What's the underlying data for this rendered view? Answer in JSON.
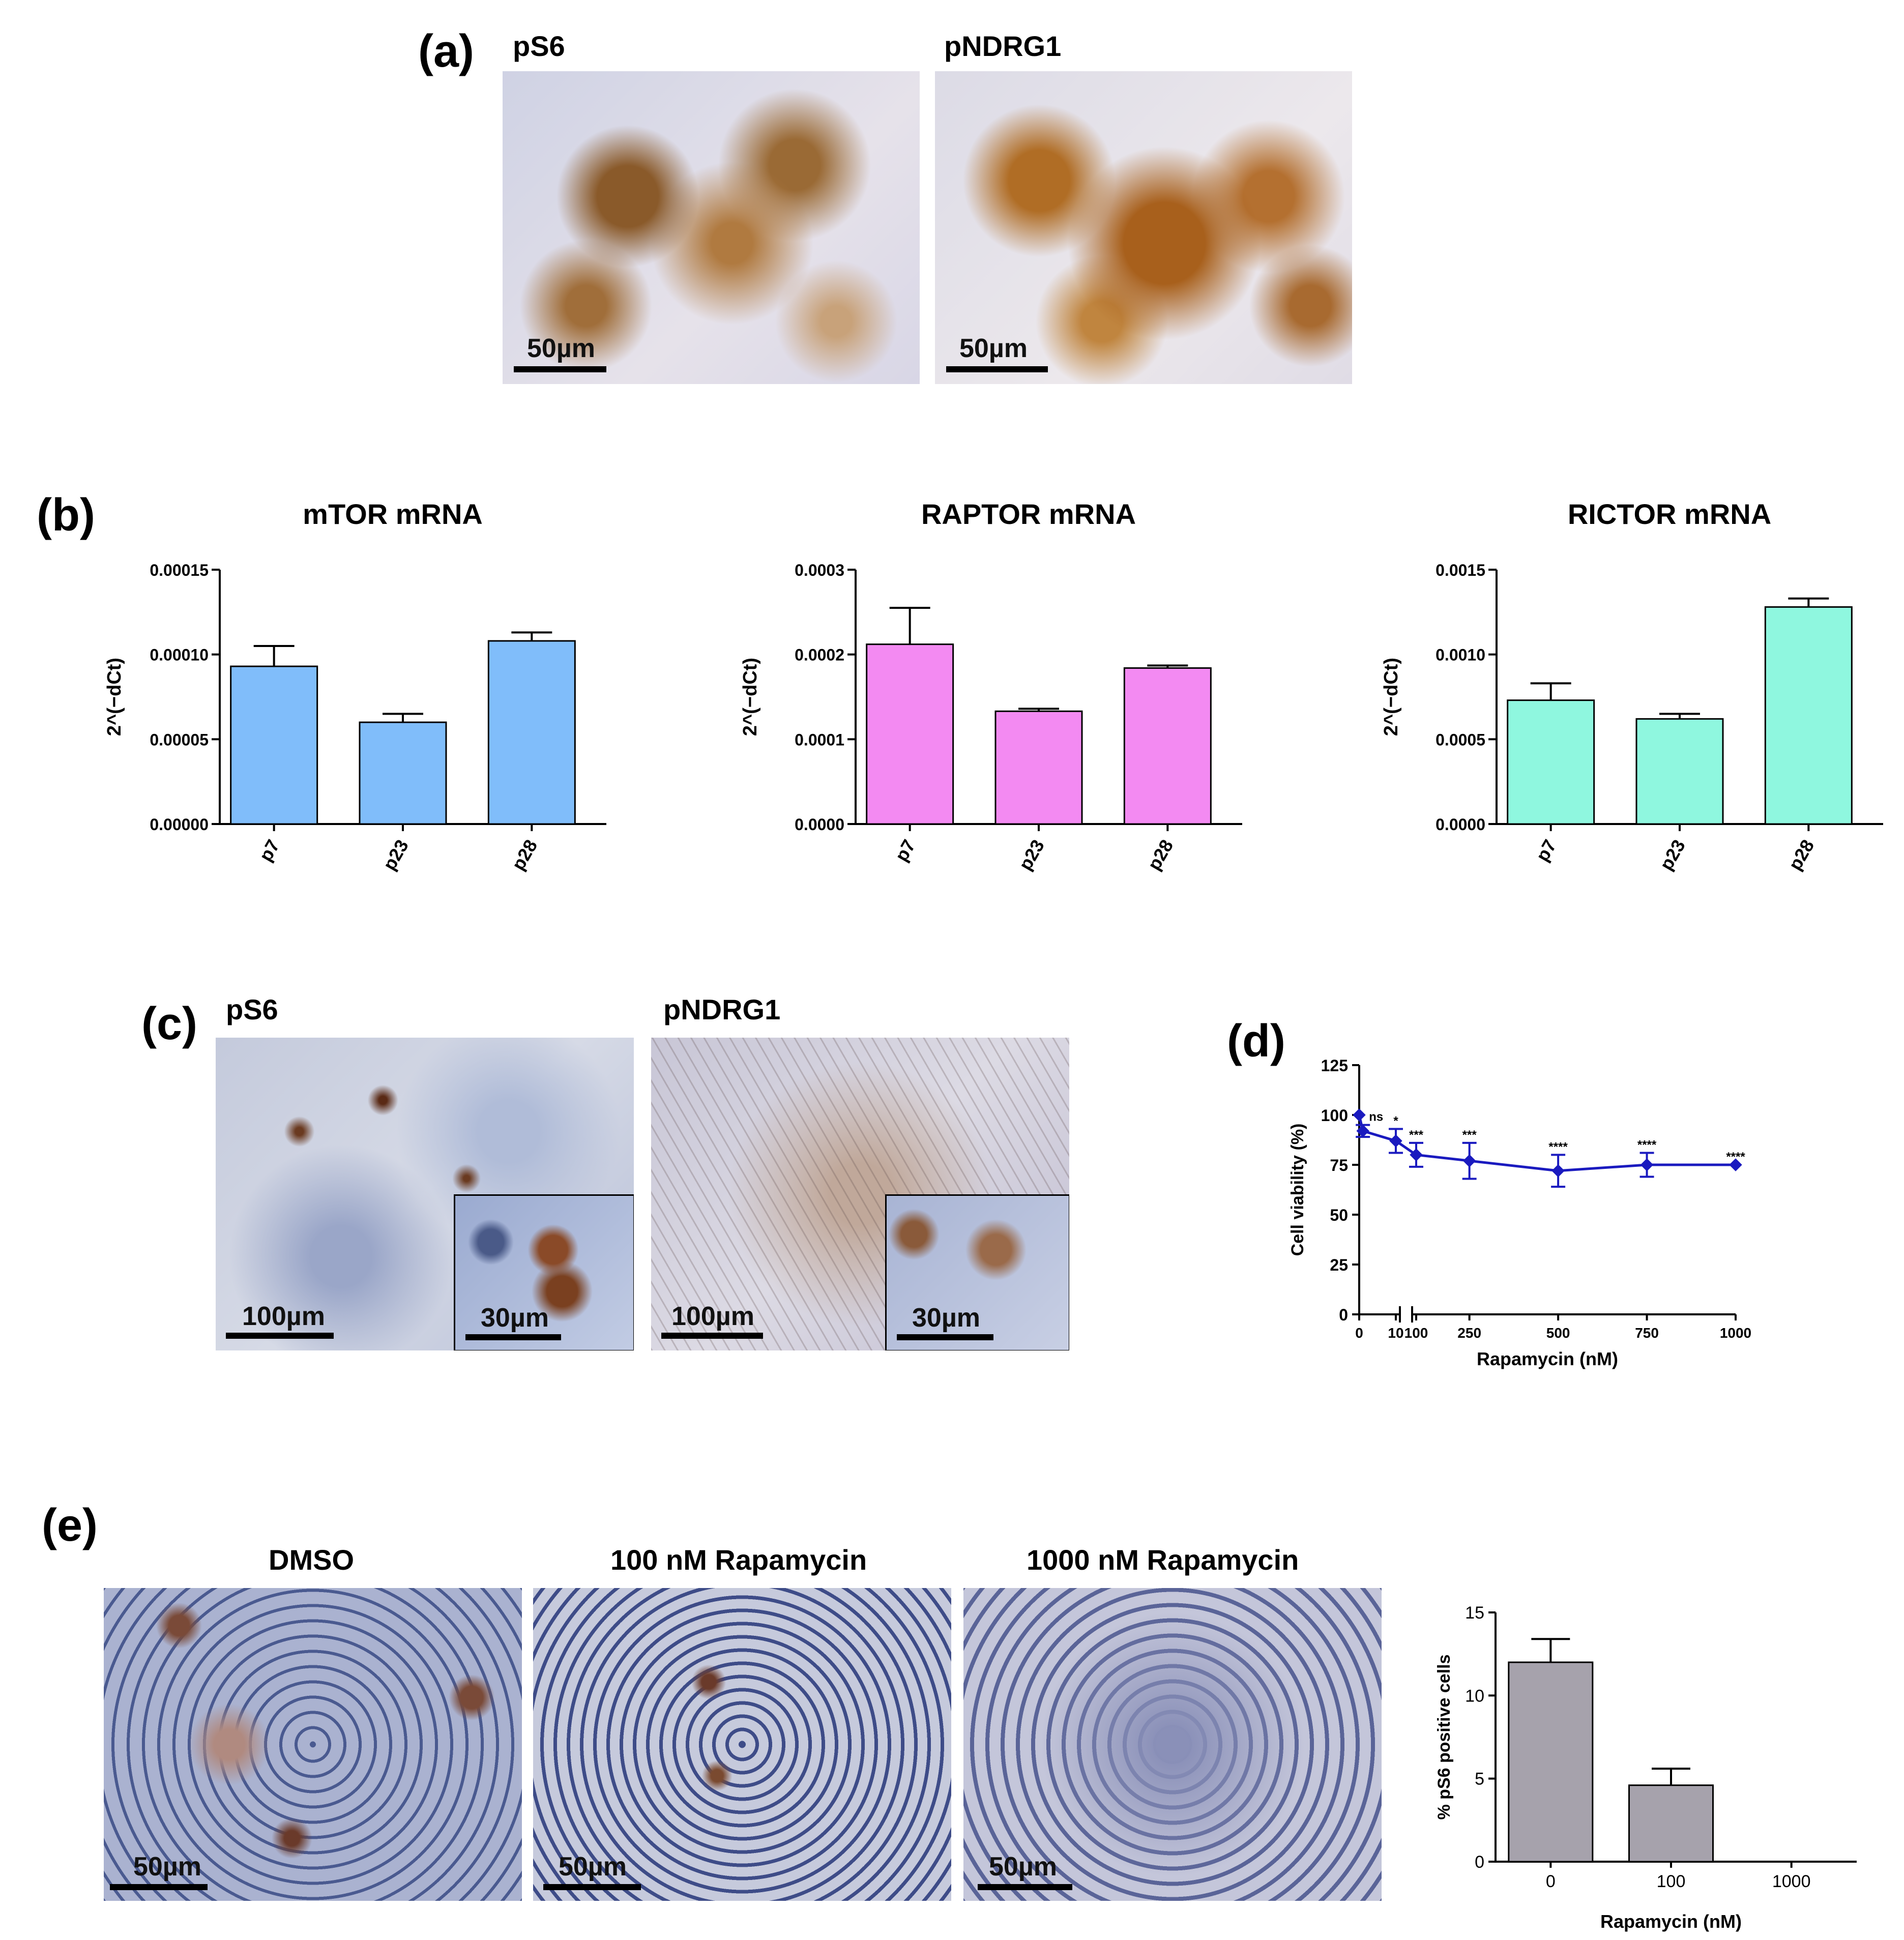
{
  "panels": {
    "a": {
      "letter": "(a)",
      "images": [
        {
          "title": "pS6",
          "scale": "50µm"
        },
        {
          "title": "pNDRG1",
          "scale": "50µm"
        }
      ]
    },
    "b": {
      "letter": "(b)"
    },
    "c": {
      "letter": "(c)",
      "images": [
        {
          "title": "pS6",
          "scale": "100µm",
          "inset_scale": "30µm"
        },
        {
          "title": "pNDRG1",
          "scale": "100µm",
          "inset_scale": "30µm"
        }
      ]
    },
    "d": {
      "letter": "(d)"
    },
    "e": {
      "letter": "(e)",
      "images": [
        {
          "title": "DMSO",
          "scale": "50µm"
        },
        {
          "title": "100 nM Rapamycin",
          "scale": "50µm"
        },
        {
          "title": "1000 nM Rapamycin",
          "scale": "50µm"
        }
      ]
    }
  },
  "chart_data": [
    {
      "id": "b1",
      "type": "bar",
      "title": "mTOR mRNA",
      "ylabel": "2^(−dCt)",
      "categories": [
        "p7",
        "p23",
        "p28"
      ],
      "values": [
        9.3e-05,
        6e-05,
        0.000108
      ],
      "errors": [
        1.2e-05,
        5e-06,
        5e-06
      ],
      "ylim": [
        0,
        0.00015
      ],
      "ticks": [
        0,
        5e-05,
        0.0001,
        0.00015
      ],
      "tick_labels": [
        "0.00000",
        "0.00005",
        "0.00010",
        "0.00015"
      ],
      "color": "#80bdfa"
    },
    {
      "id": "b2",
      "type": "bar",
      "title": "RAPTOR mRNA",
      "ylabel": "2^(−dCt)",
      "categories": [
        "p7",
        "p23",
        "p28"
      ],
      "values": [
        0.000212,
        0.000133,
        0.000184
      ],
      "errors": [
        4.3e-05,
        3e-06,
        3e-06
      ],
      "ylim": [
        0,
        0.0003
      ],
      "ticks": [
        0,
        0.0001,
        0.0002,
        0.0003
      ],
      "tick_labels": [
        "0.0000",
        "0.0001",
        "0.0002",
        "0.0003"
      ],
      "color": "#f38af2"
    },
    {
      "id": "b3",
      "type": "bar",
      "title": "RICTOR mRNA",
      "ylabel": "2^(−dCt)",
      "categories": [
        "p7",
        "p23",
        "p28"
      ],
      "values": [
        0.00073,
        0.00062,
        0.00128
      ],
      "errors": [
        0.0001,
        3e-05,
        5e-05
      ],
      "ylim": [
        0,
        0.0015
      ],
      "ticks": [
        0,
        0.0005,
        0.001,
        0.0015
      ],
      "tick_labels": [
        "0.0000",
        "0.0005",
        "0.0010",
        "0.0015"
      ],
      "color": "#8ff7df"
    },
    {
      "id": "d",
      "type": "line",
      "xlabel": "Rapamycin (nM)",
      "ylabel": "Cell viability (%)",
      "x": [
        0,
        1,
        10,
        100,
        250,
        500,
        750,
        1000
      ],
      "y": [
        100,
        92,
        87,
        80,
        77,
        72,
        75,
        75
      ],
      "errors": [
        0,
        3,
        6,
        6,
        9,
        8,
        6,
        0
      ],
      "significance": [
        "",
        "ns",
        "*",
        "***",
        "***",
        "****",
        "****",
        "****"
      ],
      "ylim": [
        0,
        125
      ],
      "yticks": [
        0,
        25,
        50,
        75,
        100,
        125
      ],
      "xtick_labels": [
        "0",
        "10",
        "100",
        "250",
        "500",
        "750",
        "1000"
      ],
      "axis_break": true,
      "color": "#1a1abf"
    },
    {
      "id": "e",
      "type": "bar",
      "xlabel": "Rapamycin (nM)",
      "ylabel": "% pS6 positive cells",
      "categories": [
        "0",
        "100",
        "1000"
      ],
      "values": [
        12,
        4.6,
        0
      ],
      "errors": [
        1.4,
        1.0,
        0
      ],
      "ylim": [
        0,
        15
      ],
      "yticks": [
        0,
        5,
        10,
        15
      ],
      "color": "#a6a2ac"
    }
  ]
}
